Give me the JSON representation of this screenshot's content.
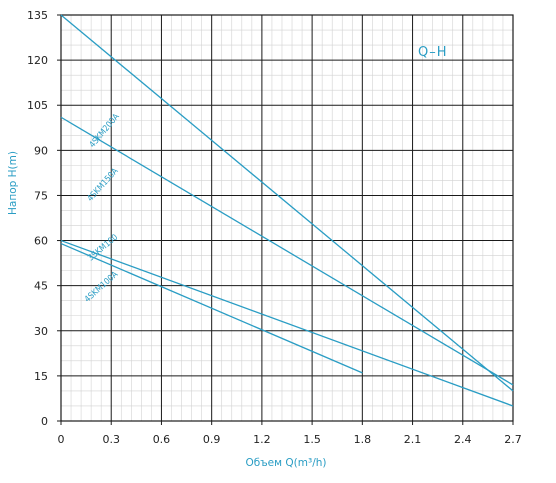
{
  "chart_data": {
    "type": "line",
    "title": "",
    "tag": "Q–H",
    "xlabel": "Объем Q(m³/h)",
    "ylabel": "Напор H(m)",
    "xlim": [
      0,
      2.7
    ],
    "ylim": [
      0,
      135
    ],
    "x_ticks": [
      "0",
      "0.3",
      "0.6",
      "0.9",
      "1.2",
      "1.5",
      "1.8",
      "2.1",
      "2.4",
      "2.7"
    ],
    "y_ticks": [
      "0",
      "15",
      "30",
      "45",
      "60",
      "75",
      "90",
      "105",
      "120",
      "135"
    ],
    "grid": true,
    "line_color": "#2a9dc4",
    "series": [
      {
        "name": "4SKM200A",
        "x": [
          0,
          2.7
        ],
        "y": [
          135,
          10
        ]
      },
      {
        "name": "4SKM150A",
        "x": [
          0,
          2.7
        ],
        "y": [
          101,
          12
        ]
      },
      {
        "name": "3SKM100",
        "x": [
          0,
          2.7
        ],
        "y": [
          60,
          5
        ]
      },
      {
        "name": "4SKM100A",
        "x": [
          0,
          1.8
        ],
        "y": [
          59,
          16
        ]
      }
    ]
  }
}
